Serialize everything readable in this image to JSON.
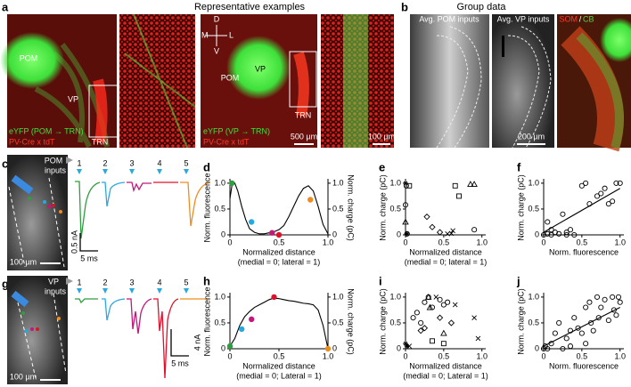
{
  "figure": {
    "panel_a": {
      "label": "a",
      "title": "Representative examples",
      "image1": {
        "labels": [
          "POM",
          "VP",
          "TRN"
        ],
        "legend": [
          "eYFP (POM → TRN)",
          "PV-Cre x tdT"
        ]
      },
      "image2": {
        "compass": [
          "D",
          "M",
          "L",
          "V"
        ],
        "labels": [
          "POM",
          "VP",
          "TRN"
        ],
        "legend": [
          "eYFP (VP → TRN)",
          "PV-Cre x tdT"
        ],
        "scale": "500 µm"
      },
      "inset_scale": "100 µm"
    },
    "panel_b": {
      "label": "b",
      "title": "Group data",
      "images": [
        "Avg. POM inputs",
        "Avg. VP inputs"
      ],
      "scale": "200 µm",
      "stain": [
        "SOM",
        "/",
        "CB"
      ]
    },
    "panel_c": {
      "label": "c",
      "inputs": [
        "POM",
        "inputs"
      ],
      "scale": "100 µm",
      "trace_numbers": [
        "1",
        "2",
        "3",
        "4",
        "5"
      ],
      "scale_y": "0.5 nA",
      "scale_x": "5 ms"
    },
    "panel_g": {
      "label": "g",
      "inputs": [
        "VP",
        "inputs"
      ],
      "scale": "100 µm",
      "trace_numbers": [
        "1",
        "2",
        "3",
        "4",
        "5"
      ],
      "scale_y": "4 nA",
      "scale_x": "5 ms"
    }
  },
  "chart_data": [
    {
      "type": "line",
      "label": "d",
      "xlabel": [
        "Normalized distance",
        "(medial = 0; lateral = 1)"
      ],
      "ylabel": "Norm. fluorescence",
      "y2label": "Norm. charge (pC)",
      "xlim": [
        0,
        1
      ],
      "ylim": [
        0,
        1.05
      ],
      "y2lim": [
        0,
        1.05
      ],
      "xticks": [
        0,
        0.5,
        {
          "value": 1,
          "label": "1.0"
        }
      ],
      "yticks": [
        0,
        0.5,
        {
          "value": 1,
          "label": "1.0"
        }
      ],
      "y2ticks": [
        0,
        0.5,
        {
          "value": 1,
          "label": "1.0"
        }
      ],
      "series": [
        {
          "color": "#000000",
          "x": [
            0,
            0.02,
            0.05,
            0.08,
            0.12,
            0.16,
            0.2,
            0.25,
            0.3,
            0.35,
            0.4,
            0.45,
            0.5,
            0.55,
            0.6,
            0.65,
            0.7,
            0.75,
            0.8,
            0.85,
            0.9,
            0.95,
            1.0
          ],
          "values": [
            0.7,
            0.95,
            1.0,
            0.85,
            0.55,
            0.3,
            0.12,
            0.05,
            0.02,
            0.02,
            0.04,
            0.06,
            0.1,
            0.18,
            0.35,
            0.55,
            0.75,
            0.9,
            0.95,
            0.85,
            0.55,
            0.2,
            0.02
          ]
        },
        {
          "axis": "y2",
          "marker": "dot",
          "colors": [
            "#2e9e3e",
            "#29a8e0",
            "#c2187a",
            "#e0102a",
            "#f08c1e"
          ],
          "x": [
            0.02,
            0.22,
            0.43,
            0.5,
            0.82
          ],
          "values": [
            1.0,
            0.25,
            0.04,
            0.0,
            0.68
          ]
        }
      ]
    },
    {
      "type": "scatter",
      "label": "e",
      "xlabel": [
        "Normalized distance",
        "(medial = 0; lateral = 1)"
      ],
      "ylabel": "Norm. charge (pC)",
      "xlim": [
        0,
        1.05
      ],
      "ylim": [
        0,
        1.05
      ],
      "xticks": [
        0,
        0.5,
        {
          "value": 1,
          "label": "1.0"
        }
      ],
      "yticks": [
        0,
        0.5,
        {
          "value": 1,
          "label": "1.0"
        }
      ],
      "series": [
        {
          "marker": "circle",
          "color": "#000000",
          "x": [
            0,
            0.01,
            0.02,
            0.9
          ],
          "values": [
            0.58,
            0.95,
            0.02,
            0.1
          ]
        },
        {
          "marker": "square",
          "color": "#000000",
          "x": [
            0.05,
            0.65,
            0.7
          ],
          "values": [
            0.95,
            0.95,
            0.75
          ]
        },
        {
          "marker": "triangle",
          "color": "#000000",
          "x": [
            0,
            0.85,
            0.9
          ],
          "values": [
            0.25,
            0.98,
            0.98
          ]
        },
        {
          "marker": "diamond",
          "color": "#000000",
          "x": [
            0.28,
            0.35,
            0.45
          ],
          "values": [
            0.35,
            0.15,
            0.05
          ]
        },
        {
          "marker": "cross",
          "color": "#000000",
          "x": [
            0.55,
            0.6,
            0.62
          ],
          "values": [
            0.02,
            0.03,
            0.08
          ]
        },
        {
          "marker": "star",
          "color": "#000000",
          "x": [
            0,
            0.02
          ],
          "values": [
            1.0,
            0.02
          ]
        }
      ]
    },
    {
      "type": "scatter",
      "label": "f",
      "xlabel": [
        "Norm. fluorescence"
      ],
      "ylabel": "Norm. charge (pC)",
      "xlim": [
        0,
        1.05
      ],
      "ylim": [
        0,
        1.05
      ],
      "xticks": [
        0,
        0.5,
        {
          "value": 1,
          "label": "1.0"
        }
      ],
      "yticks": [
        0,
        0.5,
        {
          "value": 1,
          "label": "1.0"
        }
      ],
      "series": [
        {
          "marker": "circle",
          "color": "#000000",
          "x": [
            0,
            0.05,
            0.1,
            0.15,
            0.2,
            0.25,
            0.3,
            0.35,
            0.05,
            0.1,
            0.5,
            0.55,
            0.6,
            0.7,
            0.75,
            0.8,
            0.85,
            0.95,
            1.0,
            0.9,
            0.3,
            0.4
          ],
          "values": [
            0,
            0.02,
            0,
            0.05,
            0.02,
            0.4,
            0,
            0.1,
            0.25,
            0.1,
            0.95,
            1.0,
            0.6,
            0.75,
            0.8,
            0.9,
            0.6,
            1.0,
            1.0,
            0.65,
            0.05,
            0
          ]
        },
        {
          "marker": "line",
          "color": "#000000",
          "x": [
            0,
            1
          ],
          "values": [
            0.05,
            0.9
          ]
        }
      ]
    },
    {
      "type": "line",
      "label": "h",
      "xlabel": [
        "Normalized distance",
        "(medial = 0; Lateral = 1)"
      ],
      "ylabel": "Norm. fluorescence",
      "y2label": "Norm. charge (pC)",
      "xlim": [
        0,
        1
      ],
      "ylim": [
        0,
        1.05
      ],
      "y2lim": [
        0,
        1.05
      ],
      "xticks": [
        0,
        0.5,
        {
          "value": 1,
          "label": "1.0"
        }
      ],
      "yticks": [
        0,
        0.5,
        {
          "value": 1,
          "label": "1.0"
        }
      ],
      "y2ticks": [
        0,
        0.5,
        {
          "value": 1,
          "label": "1.0"
        }
      ],
      "series": [
        {
          "color": "#000000",
          "x": [
            0,
            0.05,
            0.1,
            0.15,
            0.2,
            0.25,
            0.3,
            0.35,
            0.4,
            0.45,
            0.5,
            0.55,
            0.6,
            0.65,
            0.7,
            0.75,
            0.8,
            0.85,
            0.9,
            0.95,
            1.0
          ],
          "values": [
            0.05,
            0.2,
            0.45,
            0.62,
            0.72,
            0.8,
            0.85,
            0.9,
            0.95,
            0.98,
            0.97,
            0.95,
            0.93,
            0.92,
            0.9,
            0.88,
            0.87,
            0.85,
            0.75,
            0.45,
            0.0
          ]
        },
        {
          "axis": "y2",
          "marker": "dot",
          "colors": [
            "#2e9e3e",
            "#29a8e0",
            "#c2187a",
            "#e0102a",
            "#f08c1e"
          ],
          "x": [
            0,
            0.12,
            0.22,
            0.45,
            1.0
          ],
          "values": [
            0.05,
            0.38,
            0.57,
            1.0,
            0.0
          ]
        }
      ]
    },
    {
      "type": "scatter",
      "label": "i",
      "xlabel": [
        "Normalized distance",
        "(medial = 0; Lateral = 1)"
      ],
      "ylabel": "Norm. charge (pC)",
      "xlim": [
        0,
        1.05
      ],
      "ylim": [
        0,
        1.05
      ],
      "xticks": [
        0,
        0.5,
        {
          "value": 1,
          "label": "1.0"
        }
      ],
      "yticks": [
        0,
        0.5,
        {
          "value": 1,
          "label": "1.0"
        }
      ],
      "series": [
        {
          "marker": "circle",
          "color": "#000000",
          "x": [
            0.1,
            0.15,
            0.2,
            0.25,
            0.3,
            0.35,
            0.45,
            0.5,
            0.55
          ],
          "values": [
            0.6,
            0.7,
            0.5,
            0.9,
            1.0,
            0.8,
            0.95,
            0.85,
            0.9
          ]
        },
        {
          "marker": "triangle",
          "color": "#000000",
          "x": [
            0.3,
            0.32,
            0.5
          ],
          "values": [
            1.0,
            0.8,
            0.3
          ]
        },
        {
          "marker": "square",
          "color": "#000000",
          "x": [
            0.35,
            0.5
          ],
          "values": [
            0.15,
            0.1
          ]
        },
        {
          "marker": "diamond",
          "color": "#000000",
          "x": [
            0.2,
            0.25,
            0.45,
            0.6
          ],
          "values": [
            0.35,
            0.4,
            0.6,
            0.5
          ]
        },
        {
          "marker": "cross",
          "color": "#000000",
          "x": [
            0.05,
            0.4,
            0.65,
            0.9,
            0.95
          ],
          "values": [
            0.05,
            1.0,
            0.85,
            0.6,
            0.2
          ]
        },
        {
          "marker": "star",
          "color": "#000000",
          "x": [
            0,
            0.02
          ],
          "values": [
            0.1,
            0.05
          ]
        }
      ]
    },
    {
      "type": "scatter",
      "label": "j",
      "xlabel": [
        "Norm. fluorescence"
      ],
      "ylabel": "Norm. charge (pC)",
      "xlim": [
        0,
        1.05
      ],
      "ylim": [
        0,
        1.05
      ],
      "xticks": [
        0,
        0.5,
        {
          "value": 1,
          "label": "1.0"
        }
      ],
      "yticks": [
        0,
        0.5,
        {
          "value": 1,
          "label": "1.0"
        }
      ],
      "series": [
        {
          "marker": "circle",
          "color": "#000000",
          "x": [
            0,
            0.02,
            0.05,
            0.1,
            0.15,
            0.2,
            0.3,
            0.35,
            0.4,
            0.45,
            0.5,
            0.55,
            0.6,
            0.62,
            0.65,
            0.7,
            0.72,
            0.75,
            0.8,
            0.85,
            0.9,
            0.92,
            0.95,
            0.98,
            1.0,
            0.55,
            0.35,
            0.25
          ],
          "values": [
            0,
            0.05,
            0,
            0.1,
            0.3,
            0.5,
            0.2,
            0.35,
            0.6,
            0.4,
            0.3,
            0.8,
            0.9,
            0.5,
            0.35,
            1.0,
            0.6,
            0.8,
            0.95,
            0.55,
            1.0,
            0.75,
            0.65,
            1.0,
            0.9,
            0.1,
            0.05,
            0
          ]
        },
        {
          "marker": "line",
          "color": "#000000",
          "x": [
            0,
            1
          ],
          "values": [
            0.05,
            0.8
          ]
        }
      ]
    }
  ]
}
